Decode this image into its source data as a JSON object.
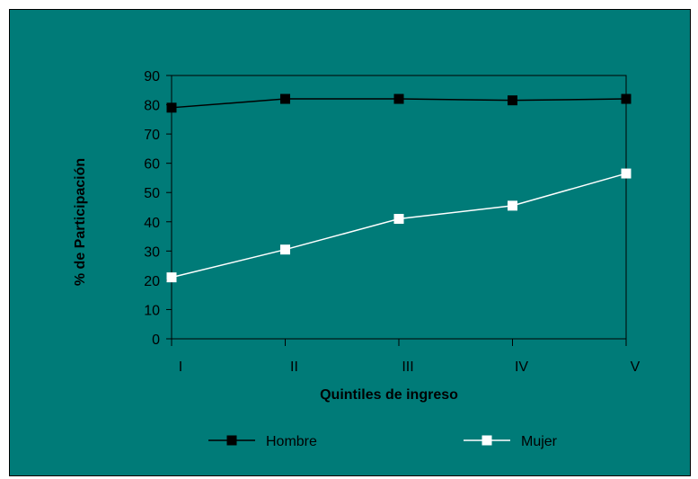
{
  "chart_data": {
    "type": "line",
    "categories": [
      "I",
      "II",
      "III",
      "IV",
      "V"
    ],
    "series": [
      {
        "name": "Hombre",
        "values": [
          79,
          82,
          82,
          81.5,
          82
        ],
        "line_color": "#000000",
        "marker_fill": "#000000",
        "marker_stroke": "#000000"
      },
      {
        "name": "Mujer",
        "values": [
          21,
          30.5,
          41,
          45.5,
          56.5
        ],
        "line_color": "#ffffff",
        "marker_fill": "#ffffff",
        "marker_stroke": "#ffffff"
      }
    ],
    "xlabel": "Quintiles de ingreso",
    "ylabel": "% de Participación",
    "ylim": [
      0,
      90
    ],
    "yticks": [
      0,
      10,
      20,
      30,
      40,
      50,
      60,
      70,
      80,
      90
    ],
    "grid": false,
    "legend_position": "bottom",
    "colors": {
      "background": "#007B78",
      "axis": "#000000"
    }
  }
}
